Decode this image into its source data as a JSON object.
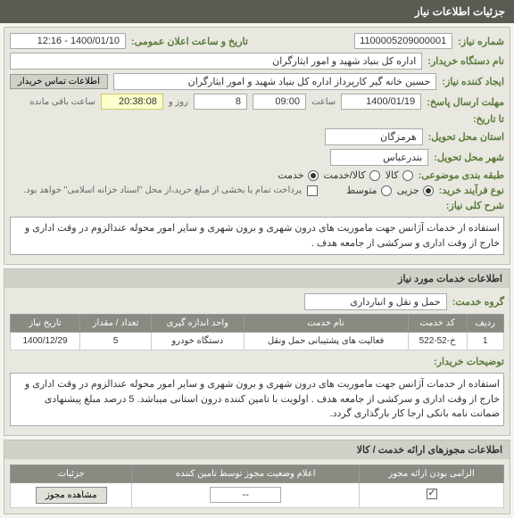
{
  "header": {
    "title": "جزئیات اطلاعات نیاز"
  },
  "need_info": {
    "number_label": "شماره نیاز:",
    "number": "1100005209000001",
    "announce_label": "تاریخ و ساعت اعلان عمومی:",
    "announce": "1400/01/10 - 12:16",
    "org_label": "نام دستگاه خریدار:",
    "org": "اداره کل بنیاد شهید و امور ایثارگران",
    "creator_label": "ایجاد کننده نیاز:",
    "creator": "حسین خانه گیر کارپرداز اداره کل بنیاد شهید و امور ایثارگران",
    "contact_btn": "اطلاعات تماس خریدار",
    "deadline_label": "مهلت ارسال پاسخ:",
    "deadline_date": "1400/01/19",
    "time_label": "ساعت",
    "deadline_time": "09:00",
    "days_val": "8",
    "days_label": "روز و",
    "countdown": "20:38:08",
    "remain_label": "ساعت باقی مانده",
    "to_date_label": "تا تاریخ:",
    "province_label": "استان محل تحویل:",
    "province": "هرمزگان",
    "city_label": "شهر محل تحویل:",
    "city": "بندرعباس",
    "category_label": "طبقه بندی موضوعی:",
    "cat_goods": "کالا",
    "cat_goods_service": "کالا/خدمت",
    "cat_service": "خدمت",
    "process_label": "نوع فرآیند خرید:",
    "proc_small": "جزیی",
    "proc_medium": "متوسط",
    "payment_note": "پرداخت تمام یا بخشی از مبلغ خرید،از محل \"اسناد خزانه اسلامی\" خواهد بود.",
    "desc_label": "شرح کلی نیاز:",
    "desc": "استفاده از خدمات آژانس جهت ماموریت های درون شهری و برون شهری و سایر امور محوله عندالزوم در وقت اداری و خارج از وقت اداری و سرکشی از جامعه هدف ."
  },
  "services": {
    "title": "اطلاعات خدمات مورد نیاز",
    "group_label": "گروه خدمت:",
    "group": "حمل و نقل و انبارداری",
    "columns": [
      "ردیف",
      "کد خدمت",
      "نام خدمت",
      "واحد اندازه گیری",
      "تعداد / مقدار",
      "تاریخ نیاز"
    ],
    "rows": [
      [
        "1",
        "خ-52-522",
        "فعالیت های پشتیبانی حمل ونقل",
        "دستگاه خودرو",
        "5",
        "1400/12/29"
      ]
    ],
    "buyer_note_label": "توضیحات خریدار:",
    "buyer_note": "استفاده از خدمات آژانس جهت ماموریت های درون شهری و برون شهری و سایر امور محوله عندالزوم در وقت اداری و خارج از وقت اداری و سرکشی از جامعه هدف . اولویت با تامین کننده درون استانی میباشد. 5 درصد مبلغ پیشنهادی ضمانت نامه بانکی ارجا کار بارگذاری گردد."
  },
  "permits": {
    "title": "اطلاعات مجوزهای ارائه خدمت / کالا",
    "columns": [
      "الزامی بودن ارائه مجوز",
      "اعلام وضعیت مجوز توسط تامین کننده",
      "جزئیات"
    ],
    "dropdown": "--",
    "view_btn": "مشاهده مجوز"
  }
}
